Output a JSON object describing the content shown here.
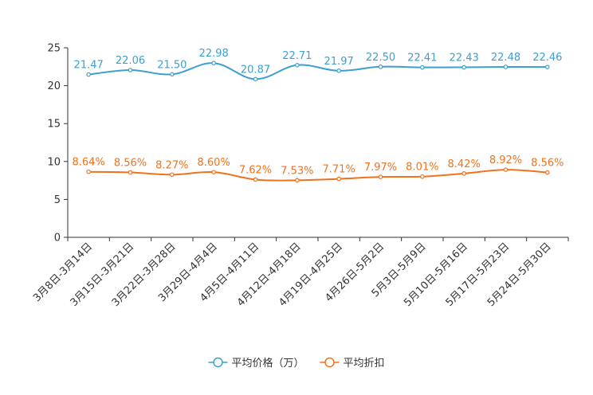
{
  "chart_data": {
    "type": "line",
    "title": "",
    "xlabel": "",
    "ylabel": "",
    "ylim": [
      0,
      25
    ],
    "yticks": [
      0,
      5,
      10,
      15,
      20,
      25
    ],
    "categories": [
      "3月8日-3月14日",
      "3月15日-3月21日",
      "3月22日-3月28日",
      "3月29日-4月4日",
      "4月5日-4月11日",
      "4月12日-4月18日",
      "4月19日-4月25日",
      "4月26日-5月2日",
      "5月3日-5月9日",
      "5月10日-5月16日",
      "5月17日-5月23日",
      "5月24日-5月30日"
    ],
    "series": [
      {
        "name": "平均价格（万）",
        "color": "#3d9fcf",
        "values": [
          21.47,
          22.06,
          21.5,
          22.98,
          20.87,
          22.71,
          21.97,
          22.5,
          22.41,
          22.43,
          22.48,
          22.46
        ],
        "labels": [
          "21.47",
          "22.06",
          "21.50",
          "22.98",
          "20.87",
          "22.71",
          "21.97",
          "22.50",
          "22.41",
          "22.43",
          "22.48",
          "22.46"
        ]
      },
      {
        "name": "平均折扣",
        "color": "#f2711c",
        "values": [
          8.64,
          8.56,
          8.27,
          8.6,
          7.62,
          7.53,
          7.71,
          7.97,
          8.01,
          8.42,
          8.92,
          8.56
        ],
        "labels": [
          "8.64%",
          "8.56%",
          "8.27%",
          "8.60%",
          "7.62%",
          "7.53%",
          "7.71%",
          "7.97%",
          "8.01%",
          "8.42%",
          "8.92%",
          "8.56%"
        ]
      }
    ],
    "legend_position": "bottom",
    "grid": false
  }
}
